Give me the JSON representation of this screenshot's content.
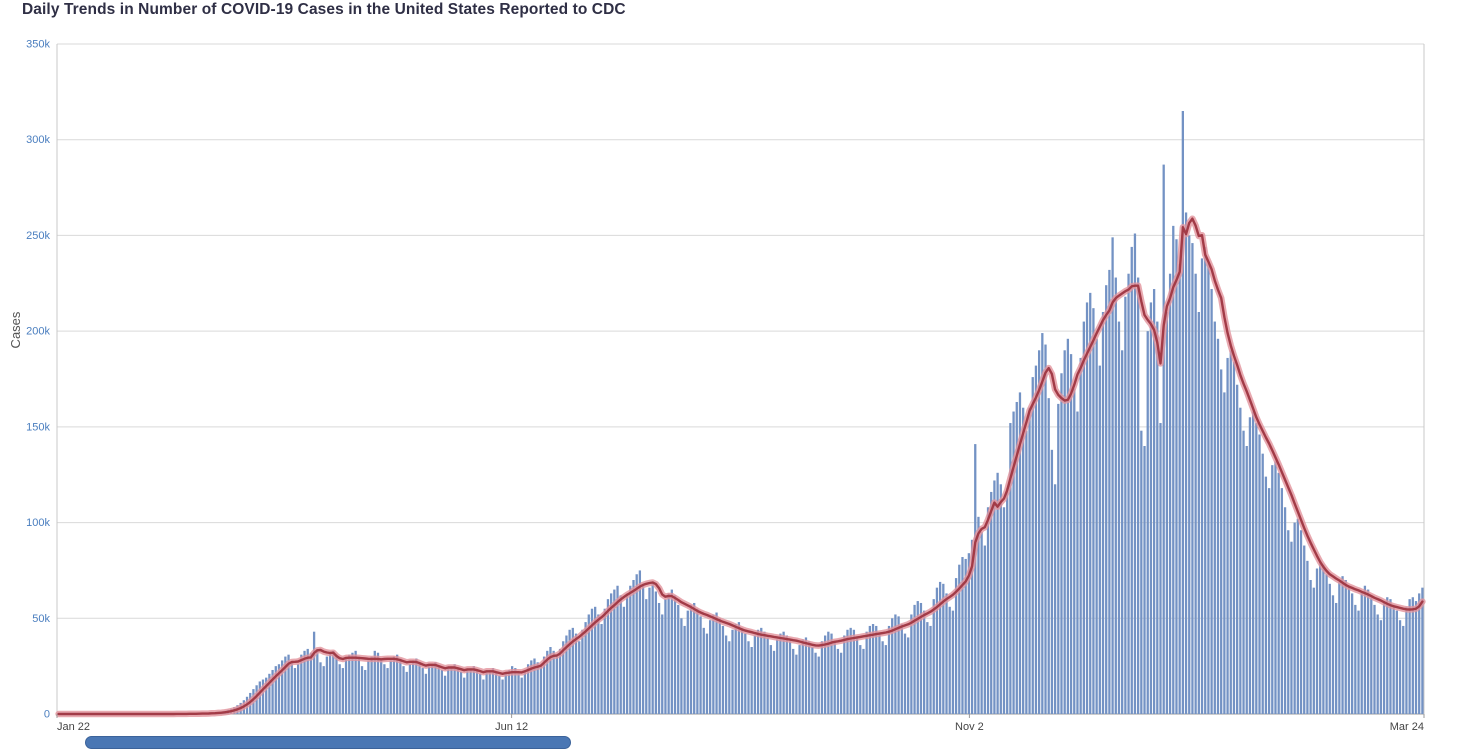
{
  "chart_data": {
    "type": "bar",
    "title": "Daily Trends in Number of COVID-19 Cases in the United States Reported to CDC",
    "ylabel": "Cases",
    "ylim": [
      0,
      350000
    ],
    "values_unit": "thousands",
    "grid": true,
    "legend": "none",
    "y_ticks": [
      {
        "value": 0,
        "label": "0"
      },
      {
        "value": 50,
        "label": "50k"
      },
      {
        "value": 100,
        "label": "100k"
      },
      {
        "value": 150,
        "label": "150k"
      },
      {
        "value": 200,
        "label": "200k"
      },
      {
        "value": 250,
        "label": "250k"
      },
      {
        "value": 300,
        "label": "300k"
      },
      {
        "value": 350,
        "label": "350k"
      }
    ],
    "x_ticks": [
      {
        "day": 0,
        "label": "Jan 22",
        "align": "start"
      },
      {
        "day": 142,
        "label": "Jun 12",
        "align": "middle"
      },
      {
        "day": 285,
        "label": "Nov 2",
        "align": "middle"
      },
      {
        "day": 427,
        "label": "Mar 24",
        "align": "end"
      }
    ],
    "overlay_line": {
      "name": "7-day moving average",
      "derivation": "trailing 7-day mean of daily cases"
    },
    "daily_cases_thousands": [
      0,
      0,
      0,
      0,
      0,
      0,
      0,
      0,
      0,
      0,
      0,
      0,
      0,
      0,
      0,
      0,
      0,
      0,
      0,
      0,
      0,
      0,
      0,
      0,
      0,
      0,
      0,
      0,
      0,
      0,
      0,
      0,
      0,
      0,
      0,
      0,
      0.1,
      0.1,
      0.1,
      0.1,
      0.1,
      0.1,
      0.2,
      0.2,
      0.3,
      0.3,
      0.4,
      0.5,
      0.6,
      0.8,
      1,
      1.3,
      1.7,
      2.2,
      2.8,
      3.6,
      4.6,
      5.8,
      7.2,
      9,
      11,
      13,
      15,
      17,
      18,
      19,
      21,
      23,
      25,
      26,
      28,
      30,
      31,
      27,
      24,
      26,
      31,
      33,
      34,
      32,
      43,
      34,
      27,
      25,
      30,
      32,
      33,
      31,
      26,
      24,
      29,
      31,
      32,
      33,
      30,
      25,
      23,
      28,
      30,
      33,
      32,
      29,
      26,
      24,
      28,
      30,
      31,
      29,
      25,
      22,
      26,
      28,
      29,
      27,
      24,
      21,
      25,
      26,
      27,
      25,
      23,
      20,
      24,
      25,
      26,
      24,
      22,
      19,
      23,
      24,
      25,
      23,
      21,
      18,
      22,
      23,
      24,
      22,
      20,
      18,
      21,
      23,
      25,
      24,
      22,
      19,
      22,
      26,
      28,
      29,
      27,
      26,
      30,
      33,
      35,
      33,
      30,
      34,
      38,
      41,
      44,
      45,
      42,
      38,
      44,
      48,
      52,
      55,
      56,
      52,
      47,
      55,
      60,
      63,
      65,
      67,
      62,
      56,
      63,
      67,
      70,
      73,
      75,
      68,
      60,
      66,
      69,
      64,
      58,
      52,
      60,
      63,
      65,
      62,
      57,
      50,
      46,
      54,
      57,
      58,
      55,
      51,
      45,
      42,
      49,
      52,
      53,
      50,
      46,
      41,
      38,
      44,
      47,
      48,
      45,
      42,
      38,
      35,
      41,
      44,
      45,
      43,
      40,
      36,
      33,
      39,
      42,
      43,
      41,
      38,
      34,
      31,
      36,
      39,
      40,
      38,
      35,
      32,
      30,
      38,
      41,
      43,
      42,
      38,
      34,
      32,
      41,
      44,
      45,
      44,
      40,
      36,
      34,
      43,
      46,
      47,
      46,
      42,
      38,
      36,
      46,
      50,
      52,
      51,
      47,
      42,
      40,
      52,
      57,
      59,
      58,
      54,
      48,
      46,
      60,
      66,
      69,
      68,
      63,
      56,
      54,
      71,
      78,
      82,
      81,
      84,
      91,
      141,
      103,
      95,
      88,
      108,
      116,
      122,
      126,
      120,
      108,
      118,
      152,
      158,
      163,
      168,
      160,
      148,
      160,
      176,
      182,
      190,
      199,
      193,
      165,
      138,
      120,
      162,
      178,
      190,
      196,
      188,
      170,
      158,
      186,
      205,
      215,
      220,
      212,
      196,
      182,
      210,
      224,
      232,
      249,
      228,
      205,
      190,
      218,
      230,
      244,
      251,
      228,
      148,
      140,
      200,
      215,
      222,
      205,
      152,
      287,
      210,
      230,
      255,
      248,
      235,
      315,
      262,
      250,
      246,
      230,
      210,
      238,
      244,
      236,
      222,
      205,
      196,
      180,
      168,
      186,
      190,
      184,
      172,
      160,
      148,
      140,
      155,
      158,
      152,
      146,
      136,
      124,
      118,
      130,
      132,
      126,
      118,
      108,
      96,
      90,
      100,
      102,
      96,
      88,
      80,
      70,
      66,
      76,
      80,
      78,
      73,
      68,
      62,
      58,
      69,
      72,
      70,
      67,
      63,
      57,
      54,
      64,
      67,
      65,
      61,
      57,
      52,
      49,
      58,
      61,
      60,
      57,
      54,
      49,
      46,
      56,
      60,
      61,
      59,
      63,
      66
    ]
  },
  "colors": {
    "bar": "#7392c4",
    "line_core": "#a23b47",
    "line_halo": "#e2949c",
    "grid": "#d9d9d9",
    "axis": "#c8c8c8",
    "bottom_axis": "#9a9a9a",
    "y_tick_label": "#4a7ebf",
    "x_tick_label": "#444444",
    "title": "#2f2f45",
    "scrollbar": "#4a77b4"
  }
}
